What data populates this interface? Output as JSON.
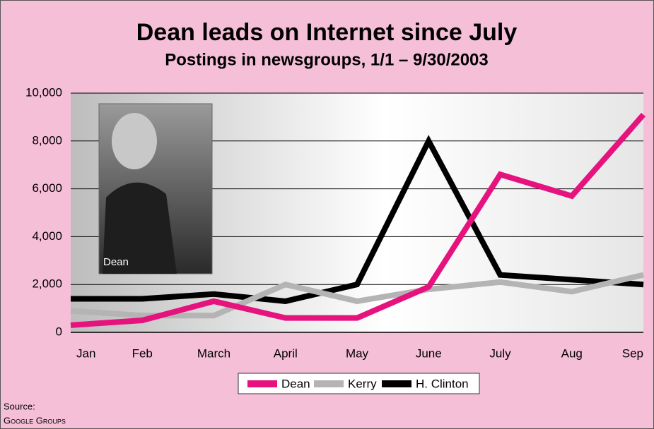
{
  "chart_data": {
    "type": "line",
    "title": "Dean leads on Internet since July",
    "subtitle": "Postings in newsgroups, 1/1 – 9/30/2003",
    "categories": [
      "Jan",
      "Feb",
      "March",
      "April",
      "May",
      "June",
      "July",
      "Aug",
      "Sep"
    ],
    "series": [
      {
        "name": "Dean",
        "color": "#e6127e",
        "values": [
          300,
          500,
          1300,
          600,
          600,
          1900,
          6600,
          5700,
          9100
        ]
      },
      {
        "name": "Kerry",
        "color": "#b4b4b4",
        "values": [
          900,
          700,
          700,
          2000,
          1300,
          1800,
          2100,
          1700,
          2400
        ]
      },
      {
        "name": "H. Clinton",
        "color": "#000000",
        "values": [
          1400,
          1400,
          1600,
          1300,
          2000,
          8000,
          2400,
          2200,
          2000
        ]
      }
    ],
    "ylim": [
      0,
      10000
    ],
    "yticks": [
      0,
      {
        "value": 2000,
        "label": "2,000"
      },
      {
        "value": 4000,
        "label": "4,000"
      },
      {
        "value": 6000,
        "label": "6,000"
      },
      {
        "value": 8000,
        "label": "8,000"
      },
      {
        "value": 10000,
        "label": "10,000"
      }
    ],
    "grid": true,
    "legend": "bottom",
    "photo_caption": "Dean",
    "source_label": "Source:",
    "source": "Google Groups"
  }
}
